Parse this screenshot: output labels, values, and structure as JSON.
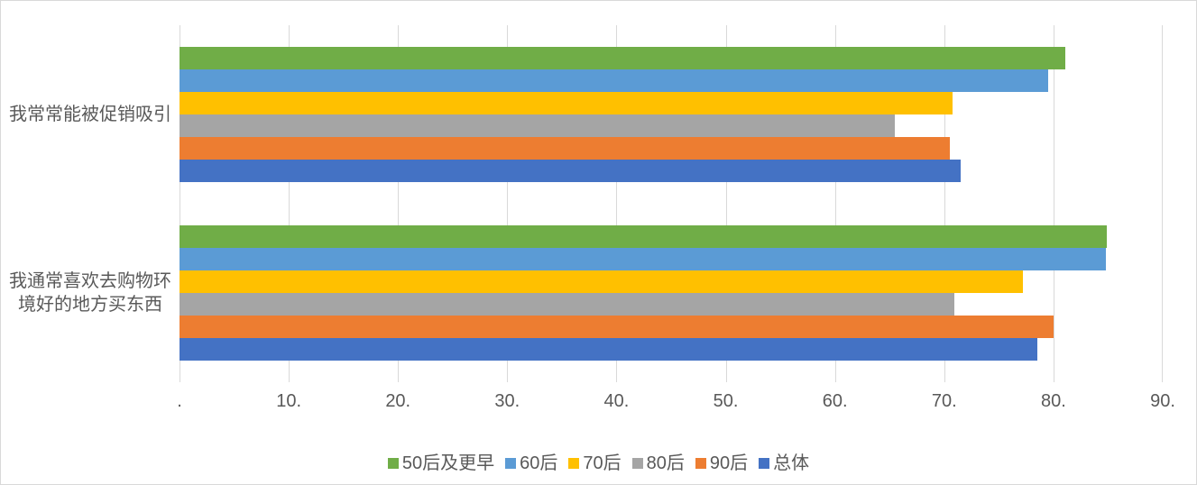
{
  "chart_data": {
    "type": "bar",
    "orientation": "horizontal",
    "title": "",
    "categories": [
      "我常常能被促销吸引",
      "我通常喜欢去购物环境好的地方买东西"
    ],
    "series": [
      {
        "name": "50后及更早",
        "color": "#70AD47",
        "values": [
          81.1,
          84.9
        ]
      },
      {
        "name": "60后",
        "color": "#5B9BD5",
        "values": [
          79.5,
          84.8
        ]
      },
      {
        "name": "70后",
        "color": "#FFC000",
        "values": [
          70.8,
          77.2
        ]
      },
      {
        "name": "80后",
        "color": "#A5A5A5",
        "values": [
          65.5,
          70.9
        ]
      },
      {
        "name": "90后",
        "color": "#ED7D31",
        "values": [
          70.5,
          80.0
        ]
      },
      {
        "name": "总体",
        "color": "#4472C4",
        "values": [
          71.5,
          78.5
        ]
      }
    ],
    "x_axis": {
      "min": 0,
      "max": 90,
      "ticks": [
        {
          "label": ".",
          "value": 0
        },
        {
          "label": "10.",
          "value": 10
        },
        {
          "label": "20.",
          "value": 20
        },
        {
          "label": "30.",
          "value": 30
        },
        {
          "label": "40.",
          "value": 40
        },
        {
          "label": "50.",
          "value": 50
        },
        {
          "label": "60.",
          "value": 60
        },
        {
          "label": "70.",
          "value": 70
        },
        {
          "label": "80.",
          "value": 80
        },
        {
          "label": "90.",
          "value": 90
        }
      ]
    },
    "legend_position": "bottom",
    "grid": true
  },
  "style": {
    "background": "#FFFFFF",
    "border_color": "#D9D9D9",
    "grid_color": "#D9D9D9",
    "text_color": "#595959"
  }
}
